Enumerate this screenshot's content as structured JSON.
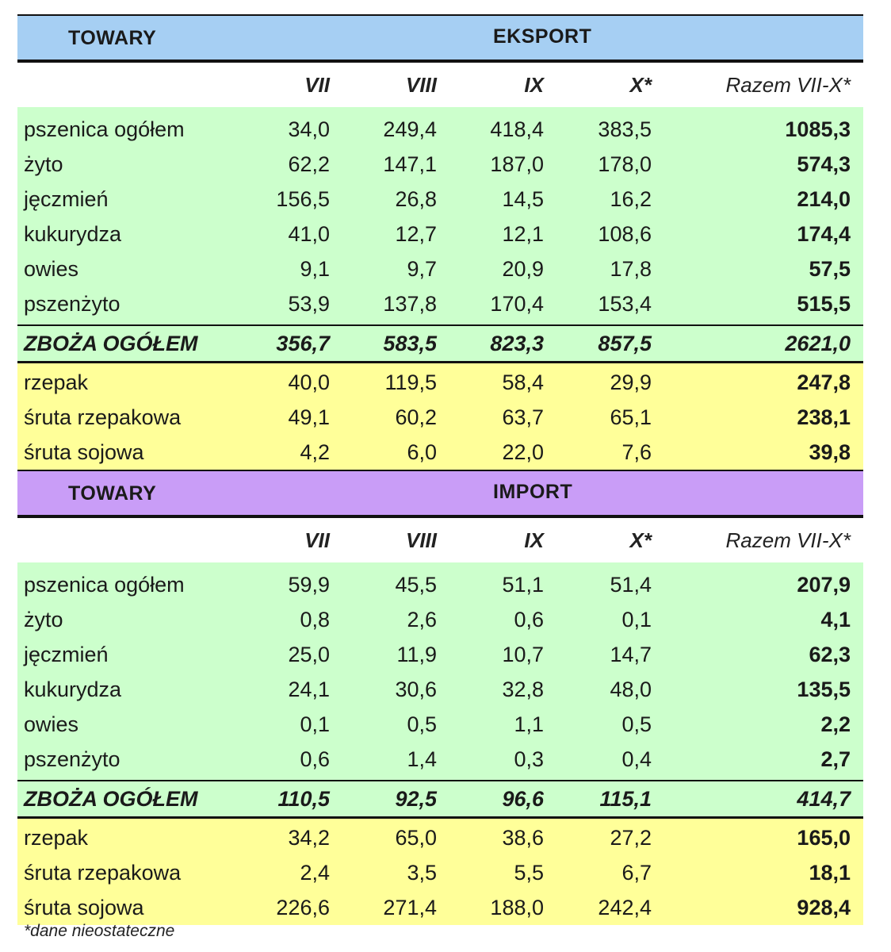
{
  "columns": [
    "VII",
    "VIII",
    "IX",
    "X*",
    "Razem VII-X*"
  ],
  "sections": [
    {
      "left_label": "TOWARY",
      "title": "EKSPORT",
      "cereals": [
        {
          "name": "pszenica ogółem",
          "vals": [
            "34,0",
            "249,4",
            "418,4",
            "383,5",
            "1085,3"
          ]
        },
        {
          "name": "żyto",
          "vals": [
            "62,2",
            "147,1",
            "187,0",
            "178,0",
            "574,3"
          ]
        },
        {
          "name": "jęczmień",
          "vals": [
            "156,5",
            "26,8",
            "14,5",
            "16,2",
            "214,0"
          ]
        },
        {
          "name": "kukurydza",
          "vals": [
            "41,0",
            "12,7",
            "12,1",
            "108,6",
            "174,4"
          ]
        },
        {
          "name": "owies",
          "vals": [
            "9,1",
            "9,7",
            "20,9",
            "17,8",
            "57,5"
          ]
        },
        {
          "name": "pszenżyto",
          "vals": [
            "53,9",
            "137,8",
            "170,4",
            "153,4",
            "515,5"
          ]
        }
      ],
      "total": {
        "name": "ZBOŻA OGÓŁEM",
        "vals": [
          "356,7",
          "583,5",
          "823,3",
          "857,5",
          "2621,0"
        ]
      },
      "oilseeds": [
        {
          "name": "rzepak",
          "vals": [
            "40,0",
            "119,5",
            "58,4",
            "29,9",
            "247,8"
          ]
        },
        {
          "name": "śruta rzepakowa",
          "vals": [
            "49,1",
            "60,2",
            "63,7",
            "65,1",
            "238,1"
          ]
        },
        {
          "name": "śruta sojowa",
          "vals": [
            "4,2",
            "6,0",
            "22,0",
            "7,6",
            "39,8"
          ]
        }
      ]
    },
    {
      "left_label": "TOWARY",
      "title": "IMPORT",
      "cereals": [
        {
          "name": "pszenica ogółem",
          "vals": [
            "59,9",
            "45,5",
            "51,1",
            "51,4",
            "207,9"
          ]
        },
        {
          "name": "żyto",
          "vals": [
            "0,8",
            "2,6",
            "0,6",
            "0,1",
            "4,1"
          ]
        },
        {
          "name": "jęczmień",
          "vals": [
            "25,0",
            "11,9",
            "10,7",
            "14,7",
            "62,3"
          ]
        },
        {
          "name": "kukurydza",
          "vals": [
            "24,1",
            "30,6",
            "32,8",
            "48,0",
            "135,5"
          ]
        },
        {
          "name": "owies",
          "vals": [
            "0,1",
            "0,5",
            "1,1",
            "0,5",
            "2,2"
          ]
        },
        {
          "name": "pszenżyto",
          "vals": [
            "0,6",
            "1,4",
            "0,3",
            "0,4",
            "2,7"
          ]
        }
      ],
      "total": {
        "name": "ZBOŻA OGÓŁEM",
        "vals": [
          "110,5",
          "92,5",
          "96,6",
          "115,1",
          "414,7"
        ]
      },
      "oilseeds": [
        {
          "name": "rzepak",
          "vals": [
            "34,2",
            "65,0",
            "38,6",
            "27,2",
            "165,0"
          ]
        },
        {
          "name": "śruta rzepakowa",
          "vals": [
            "2,4",
            "3,5",
            "5,5",
            "6,7",
            "18,1"
          ]
        },
        {
          "name": "śruta sojowa",
          "vals": [
            "226,6",
            "271,4",
            "188,0",
            "242,4",
            "928,4"
          ]
        }
      ]
    }
  ],
  "footnote": "*dane nieostateczne",
  "colors": {
    "export_header": "#a6cff3",
    "import_header": "#c99df7",
    "cereal_rows": "#ccffcc",
    "oilseed_rows": "#ffff99"
  }
}
